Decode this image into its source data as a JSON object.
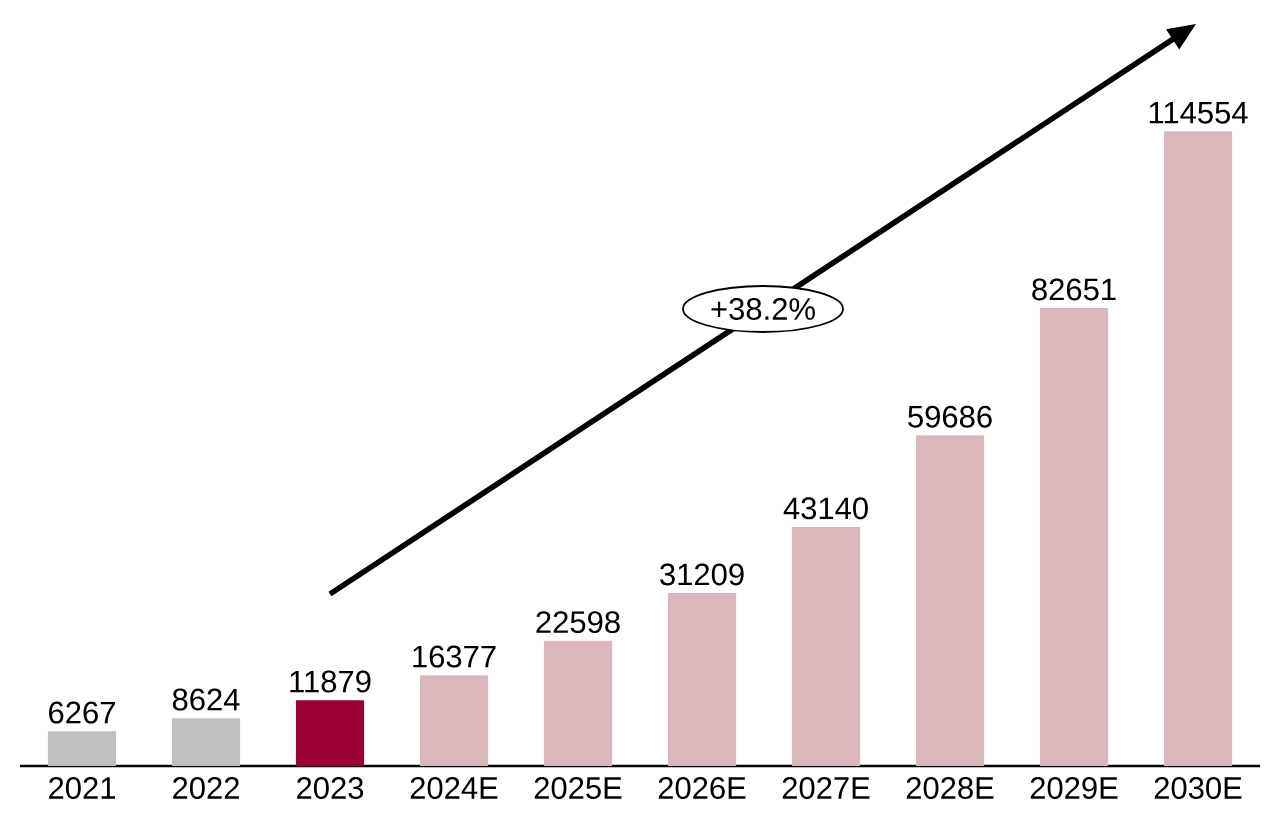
{
  "chart_data": {
    "type": "bar",
    "categories": [
      "2021",
      "2022",
      "2023",
      "2024E",
      "2025E",
      "2026E",
      "2027E",
      "2028E",
      "2029E",
      "2030E"
    ],
    "values": [
      6267,
      8624,
      11879,
      16377,
      22598,
      31209,
      43140,
      59686,
      82651,
      114554
    ],
    "colors": [
      "#bfbfbf",
      "#bfbfbf",
      "#990033",
      "#dbb7bc",
      "#dbb7bc",
      "#dbb7bc",
      "#dbb7bc",
      "#dbb7bc",
      "#dbb7bc",
      "#dbb7bc"
    ],
    "data_labels": true,
    "annotations": [
      "+38.2%"
    ]
  }
}
